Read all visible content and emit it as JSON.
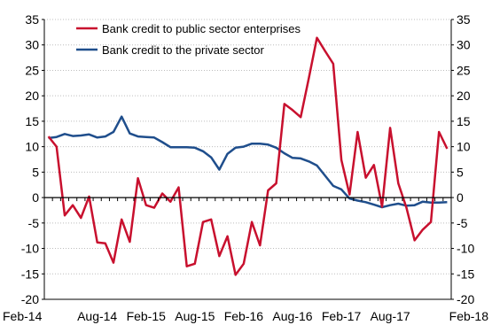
{
  "chart_data": {
    "type": "line",
    "title": "",
    "xlabel": "",
    "ylabel": "",
    "ylim": [
      -20,
      35
    ],
    "y_ticks": [
      "-20",
      "-15",
      "-10",
      "-5",
      "0",
      "5",
      "10",
      "15",
      "20",
      "25",
      "30",
      "35"
    ],
    "x_tick_labels": [
      "Feb-14",
      "Aug-14",
      "Feb-15",
      "Aug-15",
      "Feb-16",
      "Aug-16",
      "Feb-17",
      "Aug-17",
      "Feb-18"
    ],
    "x_start": "Feb-14",
    "x_end": "Mar-18",
    "legend_position": "top-left",
    "grid": true,
    "series": [
      {
        "name": "Bank credit to public sector enterprises",
        "color": "#c8102e",
        "values": [
          12.0,
          10.0,
          -3.5,
          -1.5,
          -4.0,
          0.2,
          -8.8,
          -9.0,
          -12.8,
          -4.3,
          -8.7,
          3.8,
          -1.5,
          -2.0,
          0.8,
          -0.8,
          2.0,
          -13.5,
          -13.0,
          -4.8,
          -4.3,
          -11.5,
          -7.6,
          -15.2,
          -13.0,
          -4.8,
          -9.4,
          1.4,
          2.8,
          18.4,
          17.2,
          15.8,
          23.5,
          31.4,
          28.8,
          26.3,
          7.4,
          0.6,
          12.9,
          3.9,
          6.4,
          -1.8,
          13.7,
          2.8,
          -2.0,
          -8.4,
          -6.3,
          -4.8,
          12.9,
          9.6
        ]
      },
      {
        "name": "Bank credit to the private sector",
        "color": "#1f4e8c",
        "values": [
          11.7,
          11.9,
          12.5,
          12.1,
          12.2,
          12.4,
          11.8,
          12.0,
          12.9,
          15.9,
          12.6,
          12.0,
          11.9,
          11.8,
          10.9,
          9.9,
          9.9,
          9.9,
          9.8,
          9.1,
          7.9,
          5.5,
          8.6,
          9.8,
          10.0,
          10.6,
          10.6,
          10.4,
          9.8,
          8.7,
          7.8,
          7.7,
          7.1,
          6.3,
          4.3,
          2.3,
          1.6,
          -0.2,
          -0.6,
          -0.9,
          -1.4,
          -1.9,
          -1.5,
          -1.2,
          -1.6,
          -1.5,
          -0.8,
          -1.0,
          -1.0,
          -0.9
        ]
      }
    ]
  }
}
